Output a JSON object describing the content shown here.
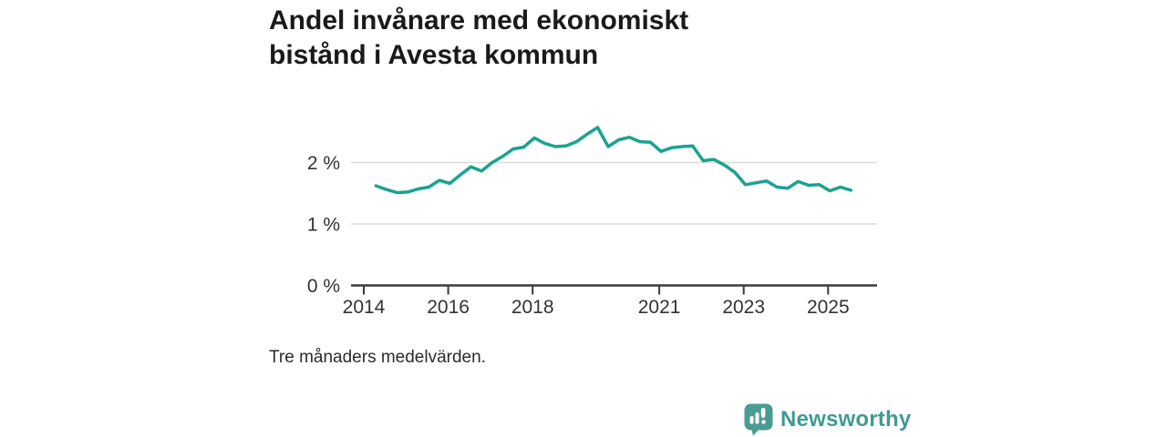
{
  "page": {
    "background_color": "#ffffff"
  },
  "header": {
    "title_line1": "Andel invånare med ekonomiskt",
    "title_line2": "bistånd i Avesta kommun"
  },
  "footnote": "Tre månaders medelvärden.",
  "branding": {
    "logo_text": "Newsworthy",
    "logo_icon": "bar-chart-speech-bubble-icon",
    "text_color": "#3E9B93",
    "icon_color": "#4A9B93"
  },
  "chart_data": {
    "type": "line",
    "title": "Andel invånare med ekonomiskt bistånd i Avesta kommun",
    "footnote": "Tre månaders medelvärden.",
    "unit": "percent of residents",
    "line_color": "#1AA390",
    "grid_color": "#DCDCDC",
    "axis_color": "#3A3A3A",
    "label_color": "#333333",
    "grid": "horizontal",
    "legend": "none",
    "x_start": 2014.29,
    "x_step": 0.25,
    "values": [
      1.62,
      1.56,
      1.51,
      1.52,
      1.57,
      1.6,
      1.71,
      1.66,
      1.8,
      1.93,
      1.86,
      2.0,
      2.1,
      2.22,
      2.25,
      2.4,
      2.31,
      2.26,
      2.27,
      2.34,
      2.46,
      2.57,
      2.26,
      2.37,
      2.41,
      2.34,
      2.33,
      2.18,
      2.24,
      2.26,
      2.27,
      2.03,
      2.05,
      1.96,
      1.84,
      1.64,
      1.67,
      1.7,
      1.6,
      1.58,
      1.69,
      1.63,
      1.64,
      1.54,
      1.6,
      1.55
    ],
    "y_ticks": [
      {
        "label": "0 %",
        "value": 0
      },
      {
        "label": "1 %",
        "value": 1
      },
      {
        "label": "2 %",
        "value": 2
      }
    ],
    "x_ticks": [
      {
        "label": "2014",
        "value": 2014
      },
      {
        "label": "2016",
        "value": 2016
      },
      {
        "label": "2018",
        "value": 2018
      },
      {
        "label": "2021",
        "value": 2021
      },
      {
        "label": "2023",
        "value": 2023
      },
      {
        "label": "2025",
        "value": 2025
      }
    ],
    "ylim": [
      0,
      2.75
    ],
    "xlim": [
      2013.7,
      2025.95
    ]
  }
}
